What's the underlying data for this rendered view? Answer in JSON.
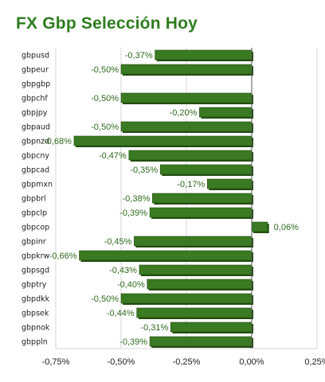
{
  "title": "FX Gbp Selección Hoy",
  "colors": {
    "bar": "#3a7a22",
    "bar_dark": "#234d12",
    "title": "#2e7d1e",
    "grid": "#d4d4d4"
  },
  "chart_data": {
    "type": "bar",
    "orientation": "horizontal",
    "title": "FX Gbp Selección Hoy",
    "xlabel": "",
    "ylabel": "",
    "xlim": [
      -0.75,
      0.25
    ],
    "grid": true,
    "legend": "none",
    "x_ticks": [
      "-0,75%",
      "-0,50%",
      "-0,25%",
      "0,00%",
      "0,25%"
    ],
    "x_tick_values": [
      -0.75,
      -0.5,
      -0.25,
      0,
      0.25
    ],
    "categories": [
      "gbpusd",
      "gbpeur",
      "gbpgbp",
      "gbpchf",
      "gbpjpy",
      "gbpaud",
      "gbpnzd",
      "gbpcny",
      "gbpcad",
      "gbpmxn",
      "gbpbrl",
      "gbpclp",
      "gbpcop",
      "gbpinr",
      "gbpkrw",
      "gbpsgd",
      "gbptry",
      "gbpdkk",
      "gbpsek",
      "gbpnok",
      "gbppln"
    ],
    "values": [
      -0.37,
      -0.5,
      null,
      -0.5,
      -0.2,
      -0.5,
      -0.68,
      -0.47,
      -0.35,
      -0.17,
      -0.38,
      -0.39,
      0.06,
      -0.45,
      -0.66,
      -0.43,
      -0.4,
      -0.5,
      -0.44,
      -0.31,
      -0.39
    ],
    "labels": [
      "-0,37%",
      "-0,50%",
      "",
      "-0,50%",
      "-0,20%",
      "-0,50%",
      "-0,68%",
      "-0,47%",
      "-0,35%",
      "-0,17%",
      "-0,38%",
      "-0,39%",
      "0,06%",
      "-0,45%",
      "-0,66%",
      "-0,43%",
      "-0,40%",
      "-0,50%",
      "-0,44%",
      "-0,31%",
      "-0,39%"
    ]
  }
}
